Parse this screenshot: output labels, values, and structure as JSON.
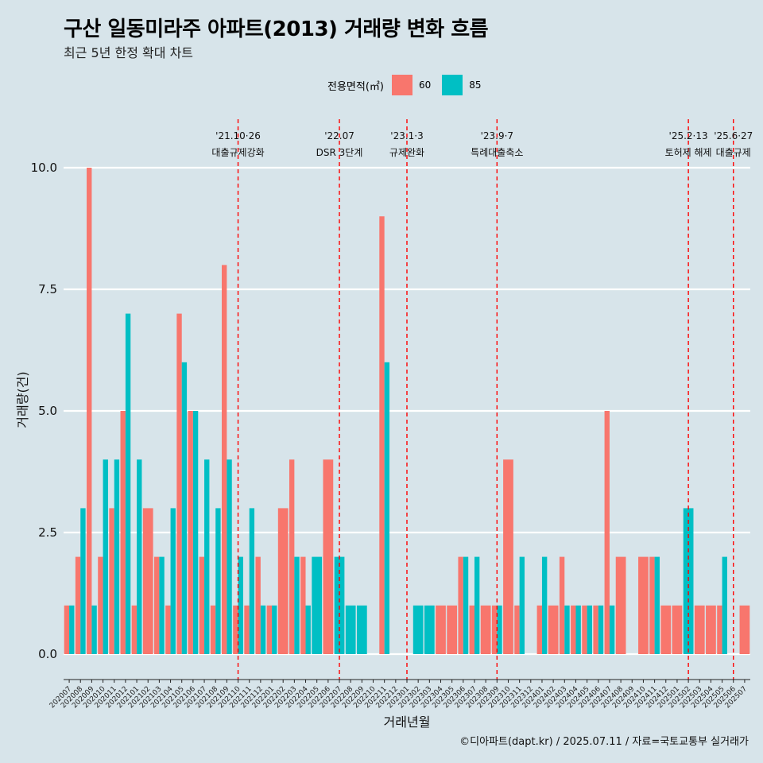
{
  "title": "구산 일동미라주 아파트(2013) 거래량 변화 흐름",
  "subtitle": "최근 5년 한정 확대 차트",
  "caption": "©디아파트(dapt.kr) / 2025.07.11 / 자료=국토교통부 실거래가",
  "legend": {
    "title": "전용면적(㎡)",
    "items": [
      {
        "label": "60",
        "color": "#f8766d"
      },
      {
        "label": "85",
        "color": "#00bfc4"
      }
    ]
  },
  "chart_data": {
    "type": "bar",
    "title": "구산 일동미라주 아파트(2013) 거래량 변화 흐름",
    "xlabel": "거래년월",
    "ylabel": "거래량(건)",
    "ylim": [
      -0.45,
      11.0
    ],
    "yticks": [
      0,
      2.5,
      5,
      7.5,
      10
    ],
    "ytick_labels": [
      "0.0",
      "2.5",
      "5.0",
      "7.5",
      "10.0"
    ],
    "categories": [
      "202007",
      "202008",
      "202009",
      "202010",
      "202011",
      "202012",
      "202101",
      "202102",
      "202103",
      "202104",
      "202105",
      "202106",
      "202107",
      "202108",
      "202109",
      "202110",
      "202111",
      "202112",
      "202201",
      "202202",
      "202203",
      "202204",
      "202205",
      "202206",
      "202207",
      "202208",
      "202209",
      "202210",
      "202211",
      "202212",
      "202301",
      "202302",
      "202303",
      "202304",
      "202305",
      "202306",
      "202307",
      "202308",
      "202309",
      "202310",
      "202311",
      "202312",
      "202401",
      "202402",
      "202403",
      "202404",
      "202405",
      "202406",
      "202407",
      "202408",
      "202409",
      "202410",
      "202411",
      "202412",
      "202501",
      "202502",
      "202503",
      "202504",
      "202505",
      "202506",
      "202507"
    ],
    "series": [
      {
        "name": "60",
        "color": "#f8766d",
        "values": [
          1,
          2,
          10,
          2,
          3,
          5,
          1,
          3,
          2,
          1,
          7,
          5,
          2,
          1,
          8,
          1,
          1,
          2,
          1,
          3,
          4,
          2,
          0,
          4,
          0,
          0,
          0,
          0,
          9,
          0,
          0,
          0,
          0,
          1,
          1,
          2,
          1,
          1,
          1,
          4,
          1,
          0,
          1,
          1,
          2,
          1,
          1,
          1,
          5,
          2,
          0,
          2,
          2,
          1,
          1,
          0,
          1,
          1,
          1,
          0,
          1
        ]
      },
      {
        "name": "85",
        "color": "#00bfc4",
        "values": [
          1,
          3,
          1,
          4,
          4,
          7,
          4,
          0,
          2,
          3,
          6,
          5,
          4,
          3,
          4,
          2,
          3,
          1,
          1,
          0,
          2,
          1,
          2,
          0,
          2,
          1,
          1,
          0,
          6,
          0,
          0,
          1,
          1,
          0,
          0,
          2,
          2,
          0,
          1,
          0,
          2,
          0,
          2,
          0,
          1,
          1,
          1,
          1,
          1,
          0,
          0,
          0,
          2,
          0,
          0,
          3,
          0,
          0,
          2,
          0,
          0
        ]
      }
    ],
    "events": [
      {
        "at": "202110",
        "date": "'21.10·26",
        "label": "대출규제강화"
      },
      {
        "at": "202207",
        "date": "'22.07",
        "label": "DSR 3단계"
      },
      {
        "at": "202301",
        "date": "'23.1·3",
        "label": "규제완화"
      },
      {
        "at": "202309",
        "date": "'23.9·7",
        "label": "특례대출축소"
      },
      {
        "at": "202502",
        "date": "'25.2·13",
        "label": "토허제 해제"
      },
      {
        "at": "202506",
        "date": "'25.6·27",
        "label": "대출규제"
      }
    ]
  }
}
